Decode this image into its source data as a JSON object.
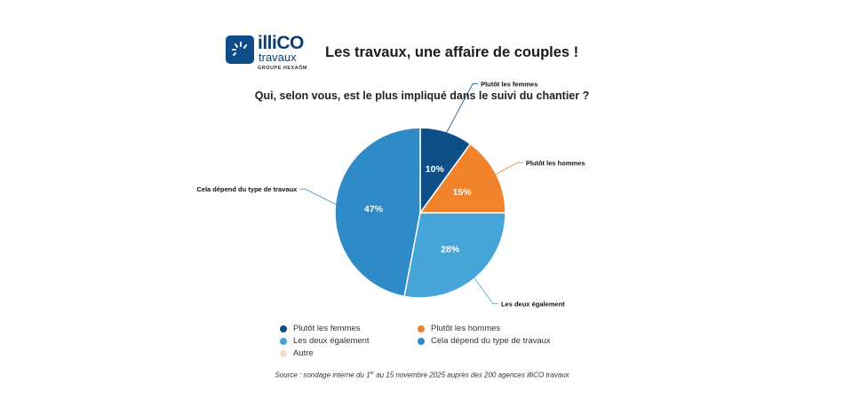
{
  "logo": {
    "word": "illiCO",
    "sub": "travaux",
    "group": "GROUPE HEXAÔM",
    "brand_color": "#0e4d8a"
  },
  "headline": "Les travaux, une affaire de couples !",
  "question": "Qui, selon vous, est le plus impliqué dans le suivi du chantier ?",
  "chart_data": {
    "type": "pie",
    "categories": [
      "Plutôt les femmes",
      "Plutôt les hommes",
      "Les deux également",
      "Cela dépend du type de travaux",
      "Autre"
    ],
    "values": [
      10,
      15,
      28,
      47,
      0
    ],
    "value_labels": [
      "10%",
      "15%",
      "28%",
      "47%",
      ""
    ],
    "colors": [
      "#0d4e86",
      "#f0832b",
      "#45a5d8",
      "#2f8ac8",
      "#f6dcc6"
    ],
    "callout_labels": [
      "Plutôt les femmes",
      "Plutôt les hommes",
      "Les deux également",
      "Cela dépend du type de travaux",
      ""
    ],
    "legend_placement": "bottom"
  },
  "legend": [
    {
      "label": "Plutôt les femmes",
      "color": "#0d4e86"
    },
    {
      "label": "Plutôt les hommes",
      "color": "#f0832b"
    },
    {
      "label": "Les deux également",
      "color": "#45a5d8"
    },
    {
      "label": "Cela dépend du type de travaux",
      "color": "#2f8ac8"
    },
    {
      "label": "Autre",
      "color": "#f6dcc6"
    }
  ],
  "source": "Source : sondage interne du 1er au 15 novembre 2025 auprès des 200 agences illiCO travaux"
}
